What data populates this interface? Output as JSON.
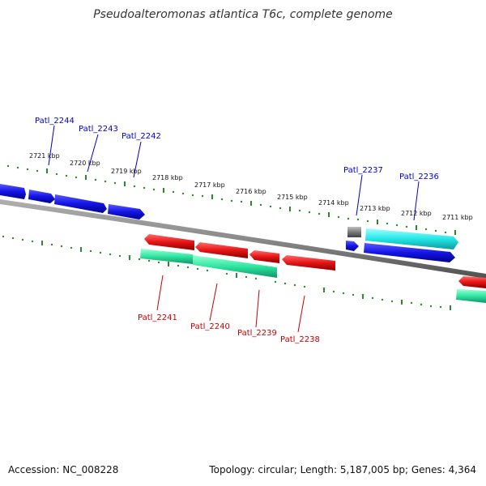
{
  "title": "Pseudoalteromonas atlantica T6c, complete genome",
  "ticks": [
    "2721 kbp",
    "2720 kbp",
    "2719 kbp",
    "2718 kbp",
    "2717 kbp",
    "2716 kbp",
    "2715 kbp",
    "2714 kbp",
    "2713 kbp",
    "2712 kbp",
    "2711 kbp"
  ],
  "genes_top": [
    {
      "name": "Patl_2244"
    },
    {
      "name": "Patl_2243"
    },
    {
      "name": "Patl_2242"
    },
    {
      "name": "Patl_2237"
    },
    {
      "name": "Patl_2236"
    }
  ],
  "genes_bottom": [
    {
      "name": "Patl_2241"
    },
    {
      "name": "Patl_2240"
    },
    {
      "name": "Patl_2239"
    },
    {
      "name": "Patl_2238"
    }
  ],
  "colors": {
    "forward": "#1414e6",
    "reverse": "#e61414",
    "rna": "#2ee6a0",
    "cyan": "#22e6e6",
    "pseudo": "#7a7a7a",
    "ticks": "#2a8a2a",
    "backbone": "#8a8a8a"
  },
  "footer": {
    "accession": "Accession: NC_008228",
    "summary": "Topology: circular; Length: 5,187,005 bp; Genes: 4,364"
  }
}
